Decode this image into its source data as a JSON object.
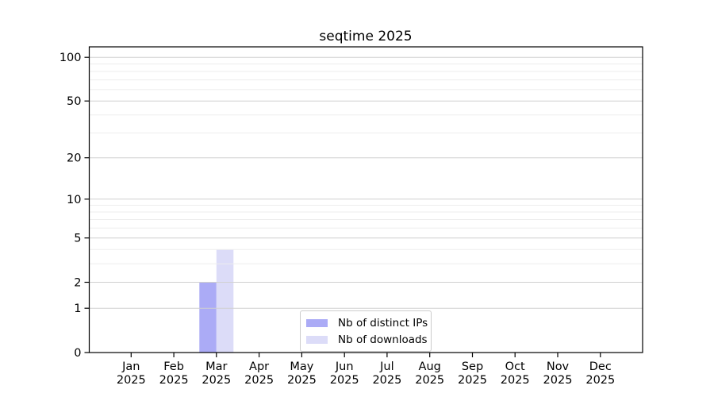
{
  "chart_data": {
    "type": "bar",
    "title": "seqtime 2025",
    "x_categories": [
      "Jan",
      "Feb",
      "Mar",
      "Apr",
      "May",
      "Jun",
      "Jul",
      "Aug",
      "Sep",
      "Oct",
      "Nov",
      "Dec"
    ],
    "x_year_label": "2025",
    "y_scale": "log10(1+y)",
    "ylim": [
      0,
      118
    ],
    "y_ticks": [
      0,
      1,
      2,
      5,
      10,
      20,
      50,
      100
    ],
    "y_minor_gridlines": [
      3,
      4,
      6,
      7,
      8,
      9,
      30,
      40,
      60,
      70,
      80,
      90
    ],
    "grid": true,
    "legend_position": "lower center inside plot",
    "bar_width_month_fraction": 0.4,
    "series": [
      {
        "name": "Nb of distinct IPs",
        "color": "#ababf6",
        "side": "left",
        "values": [
          0,
          0,
          2,
          0,
          0,
          0,
          0,
          0,
          0,
          0,
          0,
          0
        ]
      },
      {
        "name": "Nb of downloads",
        "color": "#dcdcf8",
        "side": "right",
        "values": [
          0,
          0,
          4,
          0,
          0,
          0,
          0,
          0,
          0,
          0,
          0,
          0
        ]
      }
    ],
    "colors": {
      "major_grid": "#d0d0d0",
      "minor_grid": "#ededed",
      "axis_frame": "#000000",
      "background": "#ffffff",
      "text": "#000000"
    }
  }
}
